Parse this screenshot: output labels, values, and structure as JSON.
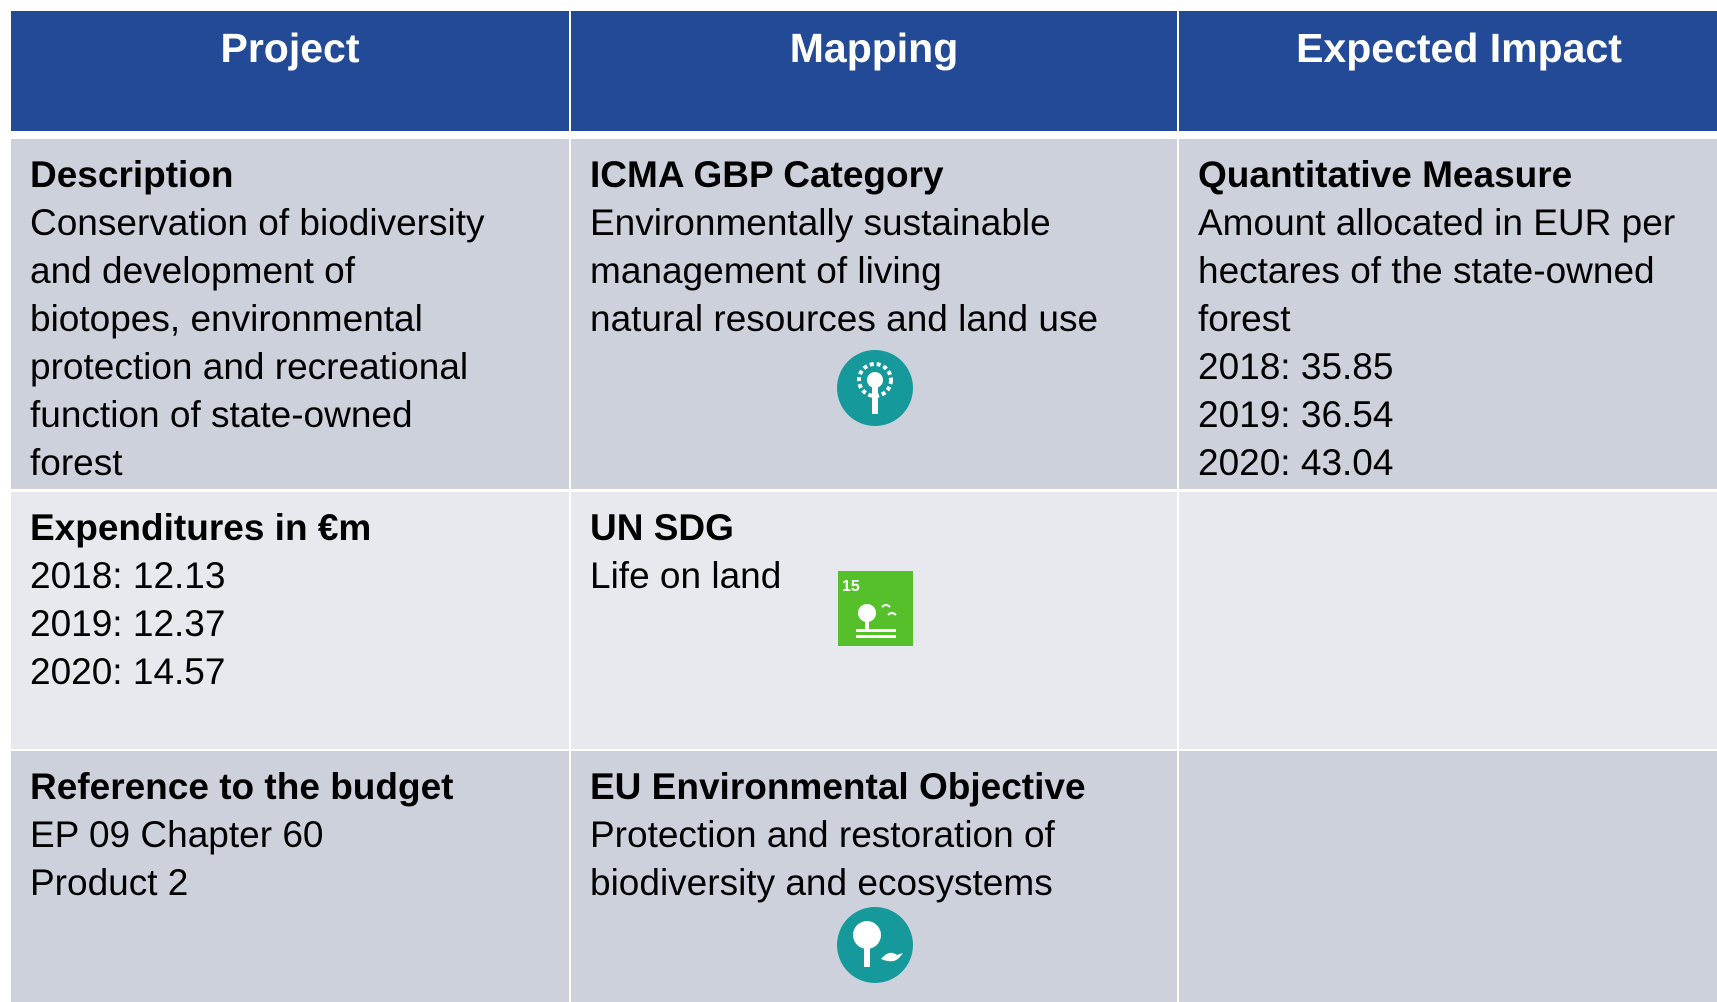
{
  "table": {
    "header": [
      "Project",
      "Mapping",
      "Expected Impact"
    ],
    "rows": [
      [
        {
          "title": "Description",
          "lines": [
            "Conservation of biodiversity",
            "and development of",
            "biotopes, environmental",
            "protection and recreational",
            "function of state-owned",
            "forest"
          ]
        },
        {
          "title": "ICMA GBP Category",
          "lines": [
            "Environmentally sustainable",
            "management of living",
            "natural resources and land use"
          ]
        },
        {
          "title": "Quantitative Measure",
          "lines": [
            "Amount allocated in EUR per",
            "hectares of the state-owned",
            "forest",
            "2018: 35.85",
            "2019: 36.54",
            "2020: 43.04"
          ]
        }
      ],
      [
        {
          "title": "Expenditures in €m",
          "lines": [
            "2018: 12.13",
            "2019: 12.37",
            "2020: 14.57"
          ]
        },
        {
          "title": "UN SDG",
          "lines": [
            "Life on land"
          ]
        }
      ],
      [
        {
          "title": "Reference to the budget",
          "lines": [
            "EP 09 Chapter 60",
            "Product 2"
          ]
        },
        {
          "title": "EU Environmental Objective",
          "lines": [
            "Protection and restoration of",
            "biodiversity and ecosystems"
          ]
        }
      ]
    ]
  }
}
